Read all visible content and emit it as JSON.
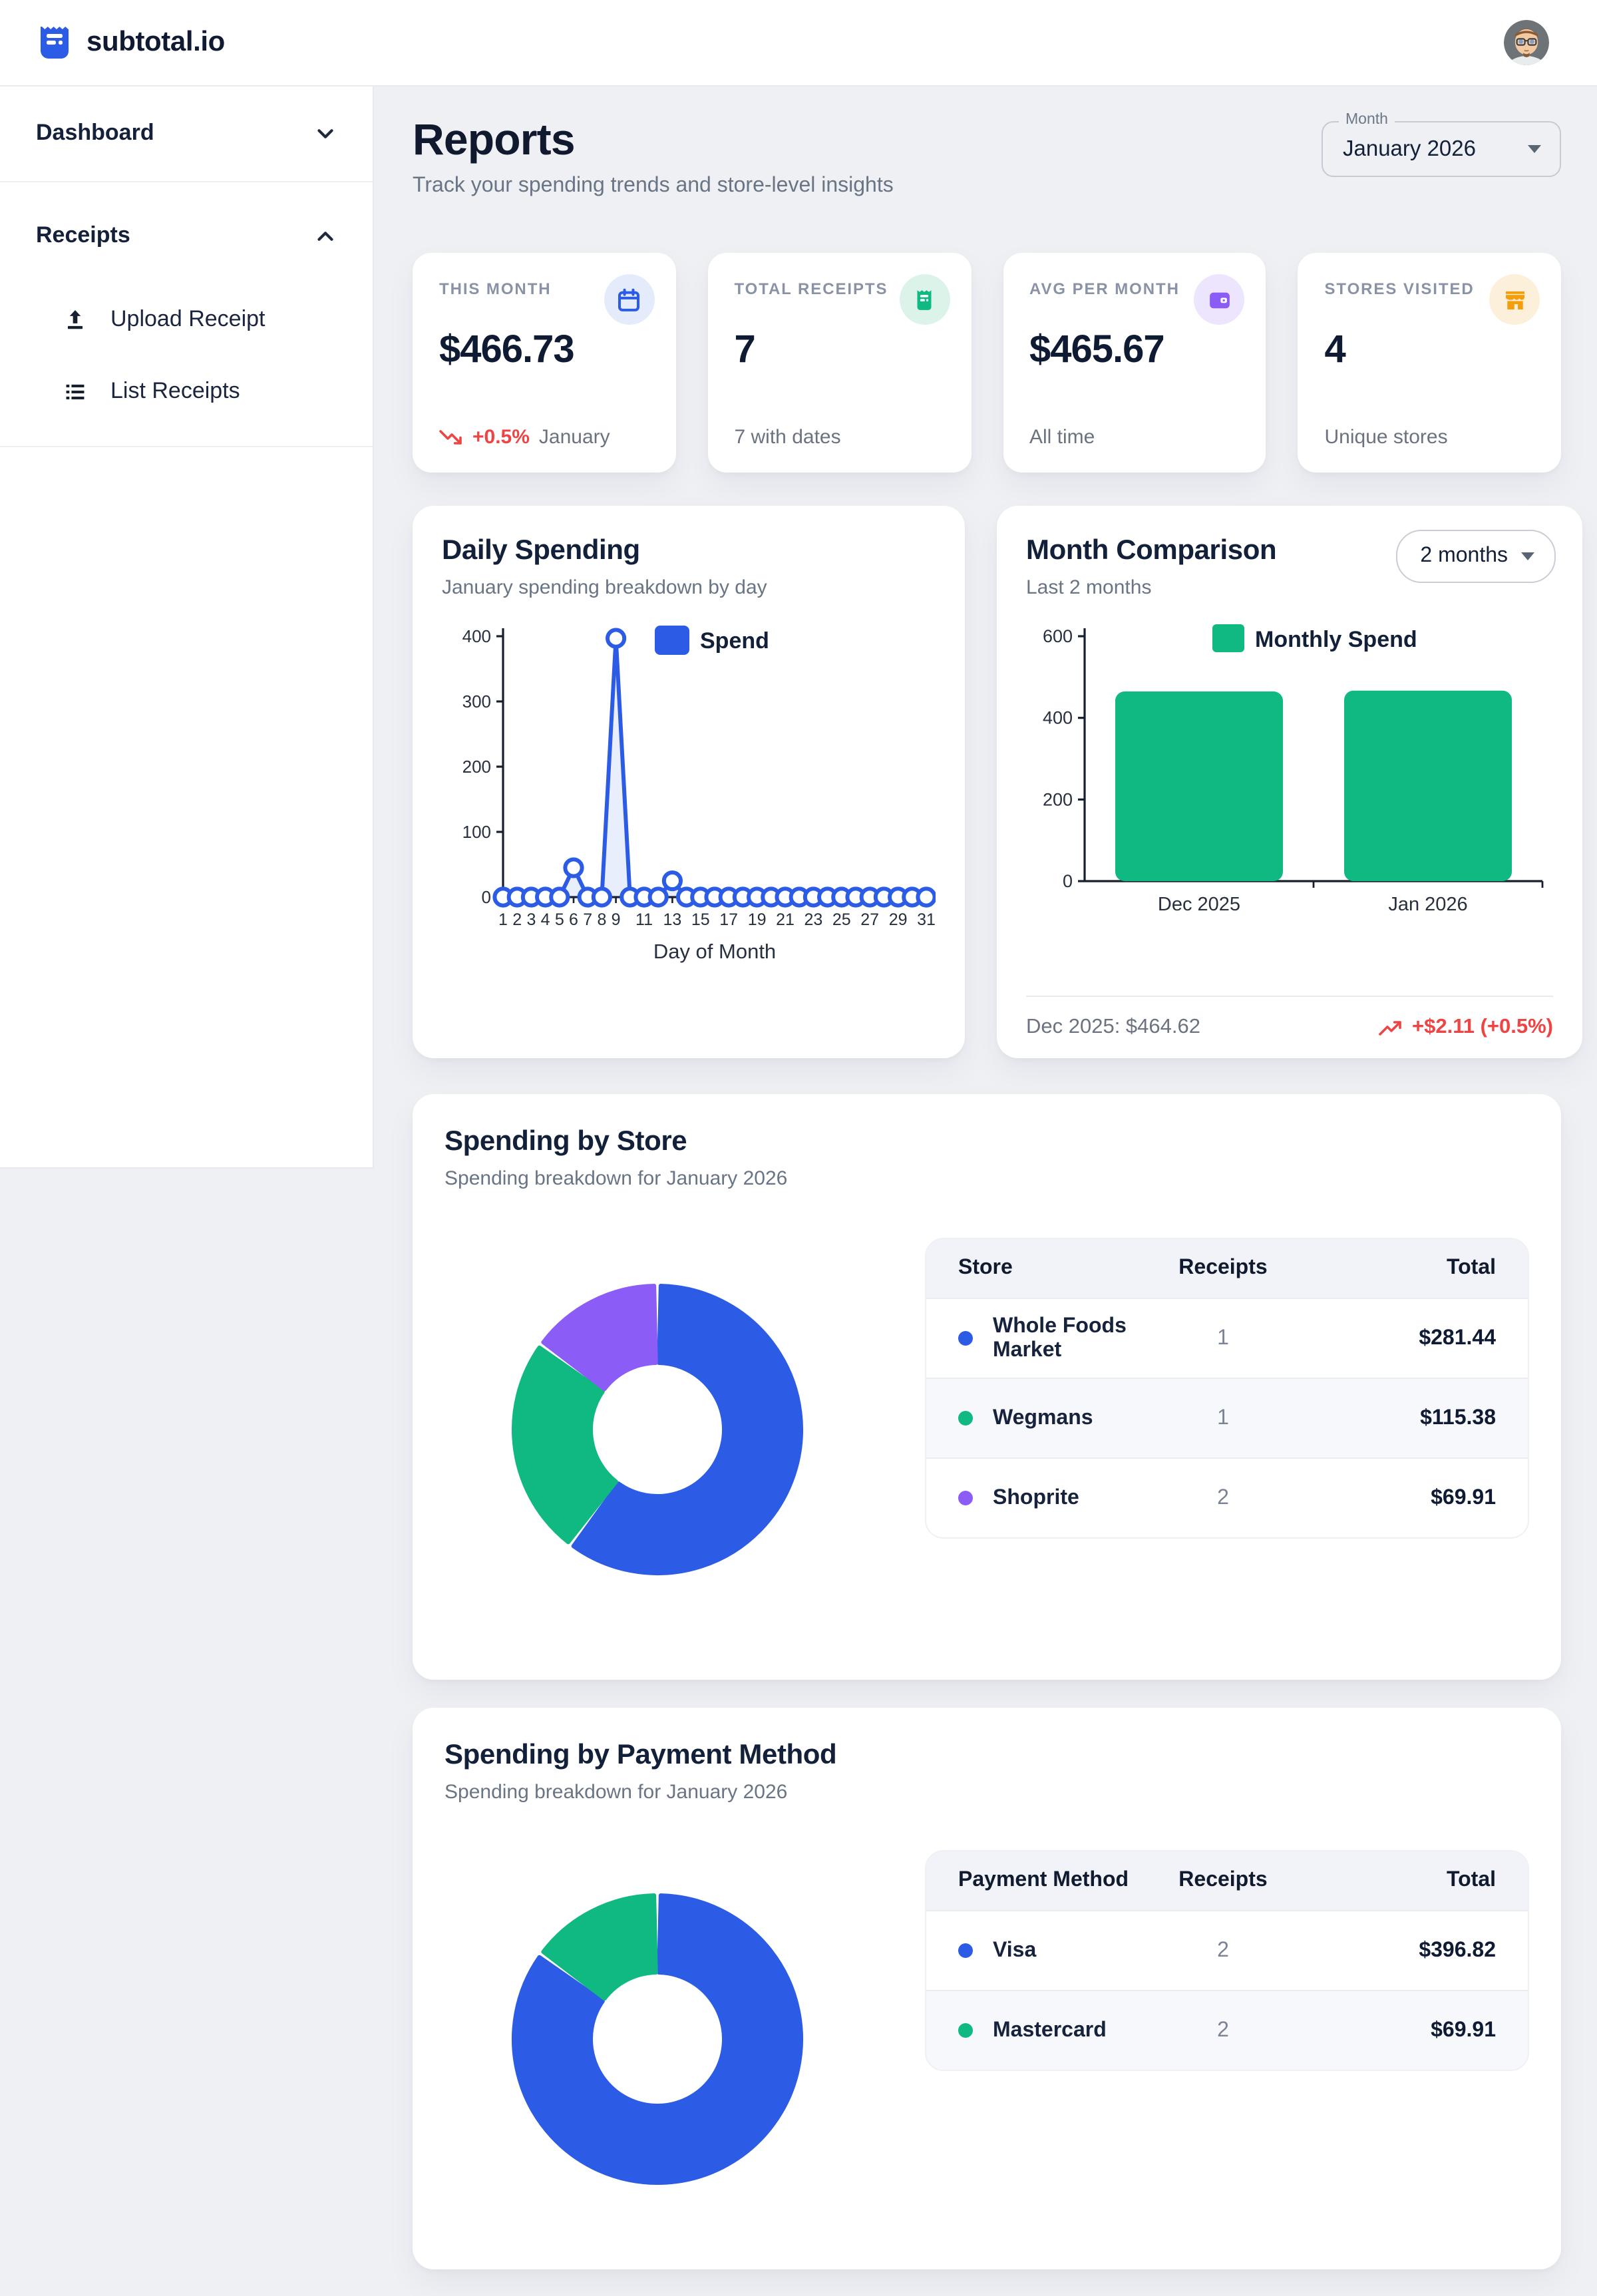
{
  "app": {
    "name": "subtotal.io"
  },
  "sidebar": {
    "items": [
      {
        "label": "Dashboard",
        "state": "collapsed"
      },
      {
        "label": "Receipts",
        "state": "expanded",
        "children": [
          {
            "label": "Upload Receipt",
            "icon": "upload-icon"
          },
          {
            "label": "List Receipts",
            "icon": "list-icon"
          }
        ]
      }
    ]
  },
  "page": {
    "title": "Reports",
    "subtitle": "Track your spending trends and store-level insights"
  },
  "month_select": {
    "label": "Month",
    "value": "January 2026"
  },
  "stats": [
    {
      "label": "THIS MONTH",
      "value": "$466.73",
      "delta": "+0.5%",
      "delta_icon": "trend-down-icon",
      "sub": "January",
      "icon": "calendar-icon",
      "icon_color": "#2c5ce5",
      "icon_bg": "#e4ecfc"
    },
    {
      "label": "TOTAL RECEIPTS",
      "value": "7",
      "sub": "7 with dates",
      "icon": "receipt-icon",
      "icon_color": "#10b981",
      "icon_bg": "#dcf3ea"
    },
    {
      "label": "AVG PER MONTH",
      "value": "$465.67",
      "sub": "All time",
      "icon": "wallet-icon",
      "icon_color": "#8b5cf6",
      "icon_bg": "#ece5fd"
    },
    {
      "label": "STORES VISITED",
      "value": "4",
      "sub": "Unique stores",
      "icon": "store-icon",
      "icon_color": "#f59e0b",
      "icon_bg": "#fdf0da"
    }
  ],
  "cards": {
    "daily": {
      "title": "Daily Spending",
      "subtitle": "January spending breakdown by day"
    },
    "comparison": {
      "title": "Month Comparison",
      "subtitle": "Last 2 months",
      "range_select": "2 months",
      "footer_left": "Dec 2025: $464.62",
      "footer_right": "+$2.11 (+0.5%)"
    },
    "store": {
      "title": "Spending by Store",
      "subtitle": "Spending breakdown for January 2026",
      "table": {
        "columns": [
          "Store",
          "Receipts",
          "Total"
        ],
        "rows": [
          {
            "name": "Whole Foods Market",
            "receipts": "1",
            "total": "$281.44",
            "color": "#2c5ce5"
          },
          {
            "name": "Wegmans",
            "receipts": "1",
            "total": "$115.38",
            "color": "#10b981"
          },
          {
            "name": "Shoprite",
            "receipts": "2",
            "total": "$69.91",
            "color": "#8b5cf6"
          }
        ]
      }
    },
    "payment": {
      "title": "Spending by Payment Method",
      "subtitle": "Spending breakdown for January 2026",
      "table": {
        "columns": [
          "Payment Method",
          "Receipts",
          "Total"
        ],
        "rows": [
          {
            "name": "Visa",
            "receipts": "2",
            "total": "$396.82",
            "color": "#2c5ce5"
          },
          {
            "name": "Mastercard",
            "receipts": "2",
            "total": "$69.91",
            "color": "#10b981"
          }
        ]
      }
    }
  },
  "chart_data": [
    {
      "id": "daily_spending",
      "type": "line",
      "title": "Daily Spending",
      "xlabel": "Day of Month",
      "x": [
        1,
        2,
        3,
        4,
        5,
        6,
        7,
        8,
        9,
        10,
        11,
        12,
        13,
        14,
        15,
        16,
        17,
        18,
        19,
        20,
        21,
        22,
        23,
        24,
        25,
        26,
        27,
        28,
        29,
        30,
        31
      ],
      "values": [
        0,
        0,
        0,
        0,
        0,
        44.95,
        0,
        0,
        396.82,
        0,
        0,
        0,
        24.96,
        0,
        0,
        0,
        0,
        0,
        0,
        0,
        0,
        0,
        0,
        0,
        0,
        0,
        0,
        0,
        0,
        0,
        0
      ],
      "x_tick_labels": [
        "1",
        "2",
        "3",
        "4",
        "5",
        "6",
        "7",
        "8",
        "9",
        "11",
        "13",
        "15",
        "17",
        "19",
        "21",
        "23",
        "25",
        "27",
        "29",
        "31"
      ],
      "ylim": [
        0,
        400
      ],
      "yticks": [
        0,
        100,
        200,
        300,
        400
      ],
      "legend": [
        "Spend"
      ],
      "legend_position": "top",
      "color": "#2c5ce5",
      "fill": "rgba(44,92,229,0.10)",
      "marker": "circle",
      "grid": false
    },
    {
      "id": "month_comparison",
      "type": "bar",
      "categories": [
        "Dec 2025",
        "Jan 2026"
      ],
      "values": [
        464.62,
        466.73
      ],
      "ylim": [
        0,
        600
      ],
      "yticks": [
        0,
        200,
        400,
        600
      ],
      "legend": [
        "Monthly Spend"
      ],
      "legend_position": "top",
      "color": "#10b981",
      "grid": false
    },
    {
      "id": "spending_by_store",
      "type": "pie",
      "donut": true,
      "labels": [
        "Whole Foods Market",
        "Wegmans",
        "Shoprite"
      ],
      "values": [
        281.44,
        115.38,
        69.91
      ],
      "colors": [
        "#2c5ce5",
        "#10b981",
        "#8b5cf6"
      ]
    },
    {
      "id": "spending_by_payment_method",
      "type": "pie",
      "donut": true,
      "labels": [
        "Visa",
        "Mastercard"
      ],
      "values": [
        396.82,
        69.91
      ],
      "colors": [
        "#2c5ce5",
        "#10b981"
      ]
    }
  ]
}
